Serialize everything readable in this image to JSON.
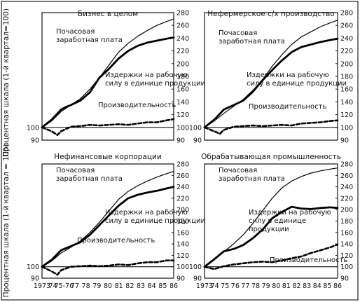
{
  "figure": {
    "ylabel_top": "Процентная шкала (1-й квартал=100)",
    "ylabel_bottom": "Процентная шкала (1-й квартал = 100)",
    "yticks": [
      "90",
      "100",
      "120",
      "140",
      "160",
      "180",
      "200",
      "220",
      "240",
      "260",
      "280"
    ],
    "xticks_left": [
      "1973",
      "74",
      "75-76",
      "77",
      "78",
      "79",
      "80",
      "81",
      "82",
      "83",
      "84",
      "85",
      "86"
    ],
    "xticks_right": [
      "1973",
      "74",
      "75",
      "76",
      "77",
      "78",
      "79",
      "80",
      "81",
      "82",
      "83",
      "84",
      "85",
      "86"
    ]
  },
  "chart_data": [
    {
      "type": "line",
      "title": "Бизнес в целом",
      "ylim": [
        90,
        280
      ],
      "xlim": [
        1973,
        1986.75
      ],
      "annotations": [
        "Почасовая заработная плата",
        "Издержки на рабочую силу в единице продукции",
        "Производительность"
      ],
      "series": [
        {
          "name": "Почасовая заработная плата",
          "style": "thin",
          "x": [
            1973,
            1974,
            1975,
            1976,
            1977,
            1978,
            1979,
            1980,
            1981,
            1982,
            1983,
            1984,
            1985,
            1986,
            1986.75
          ],
          "y": [
            100,
            110,
            125,
            135,
            145,
            160,
            178,
            198,
            218,
            232,
            243,
            252,
            260,
            266,
            270
          ]
        },
        {
          "name": "Издержки на рабочую силу в единице продукции",
          "style": "thick",
          "x": [
            1973,
            1974,
            1975,
            1975.5,
            1976,
            1977,
            1978,
            1979,
            1980,
            1981,
            1982,
            1983,
            1984,
            1985,
            1986,
            1986.75
          ],
          "y": [
            100,
            112,
            128,
            132,
            135,
            142,
            155,
            178,
            192,
            208,
            220,
            228,
            233,
            236,
            239,
            241
          ]
        },
        {
          "name": "Производительность",
          "style": "dashed",
          "x": [
            1973,
            1974,
            1974.6,
            1975,
            1976,
            1977,
            1978,
            1979,
            1980,
            1981,
            1982,
            1983,
            1984,
            1985,
            1986,
            1986.75
          ],
          "y": [
            100,
            97,
            94,
            97,
            101,
            102,
            104,
            103,
            104,
            105,
            104,
            106,
            108,
            108,
            111,
            113
          ]
        }
      ]
    },
    {
      "type": "line",
      "title": "Нефермерское с/х производство",
      "ylim": [
        90,
        280
      ],
      "xlim": [
        1973,
        1986.75
      ],
      "annotations": [
        "Почасовая заработная плата",
        "Издержки на рабочую силу в единице продукции",
        "Производительность"
      ],
      "series": [
        {
          "name": "Почасовая заработная плата",
          "style": "thin",
          "x": [
            1973,
            1974,
            1975,
            1976,
            1977,
            1978,
            1979,
            1980,
            1981,
            1982,
            1983,
            1984,
            1985,
            1986,
            1986.75
          ],
          "y": [
            100,
            110,
            122,
            133,
            144,
            158,
            175,
            196,
            214,
            230,
            242,
            250,
            258,
            264,
            268
          ]
        },
        {
          "name": "Издержки на рабочую силу в единице продукции",
          "style": "thick",
          "x": [
            1973,
            1974,
            1975,
            1976,
            1977,
            1978,
            1979,
            1980,
            1981,
            1982,
            1983,
            1984,
            1985,
            1986,
            1986.75
          ],
          "y": [
            100,
            112,
            128,
            135,
            142,
            156,
            174,
            190,
            205,
            218,
            226,
            230,
            234,
            237,
            239
          ]
        },
        {
          "name": "Производительность",
          "style": "dashed",
          "x": [
            1973,
            1974,
            1974.6,
            1975,
            1976,
            1977,
            1978,
            1979,
            1980,
            1981,
            1982,
            1983,
            1984,
            1985,
            1986,
            1986.75
          ],
          "y": [
            100,
            97,
            95,
            98,
            101,
            102,
            103,
            102,
            103,
            104,
            103,
            106,
            107,
            108,
            110,
            111
          ]
        }
      ]
    },
    {
      "type": "line",
      "title": "Нефинансовые корпорации",
      "ylim": [
        90,
        280
      ],
      "xlim": [
        1973,
        1986.75
      ],
      "annotations": [
        "Почасовая заработная плата",
        "Издержки на рабочую силу в единице продукции",
        "Производительность"
      ],
      "series": [
        {
          "name": "Почасовая заработная плата",
          "style": "thin",
          "x": [
            1973,
            1974,
            1975,
            1976,
            1977,
            1978,
            1979,
            1980,
            1981,
            1982,
            1983,
            1984,
            1985,
            1986,
            1986.75
          ],
          "y": [
            100,
            110,
            124,
            134,
            145,
            160,
            178,
            198,
            218,
            232,
            242,
            250,
            257,
            263,
            267
          ]
        },
        {
          "name": "Издержки на рабочую силу в единице продукции",
          "style": "thick",
          "x": [
            1973,
            1974,
            1975,
            1976,
            1977,
            1978,
            1979,
            1980,
            1981,
            1982,
            1983,
            1984,
            1985,
            1986,
            1986.75
          ],
          "y": [
            100,
            112,
            129,
            136,
            143,
            156,
            173,
            190,
            207,
            220,
            226,
            230,
            233,
            237,
            240
          ]
        },
        {
          "name": "Производительность",
          "style": "dashed",
          "x": [
            1973,
            1974,
            1974.6,
            1975,
            1976,
            1977,
            1978,
            1979,
            1980,
            1981,
            1982,
            1983,
            1984,
            1985,
            1986,
            1986.75
          ],
          "y": [
            100,
            96,
            93,
            97,
            100,
            101,
            102,
            101,
            102,
            104,
            103,
            106,
            108,
            108,
            111,
            111
          ]
        }
      ]
    },
    {
      "type": "line",
      "title": "Обрабатывающая промышленность",
      "ylim": [
        90,
        280
      ],
      "xlim": [
        1973,
        1986.75
      ],
      "annotations": [
        "Почасовая заработная плата",
        "Издержки на рабочую силу в единице продукции",
        "Производительность"
      ],
      "series": [
        {
          "name": "Почасовая заработная плата",
          "style": "thin",
          "x": [
            1973,
            1974,
            1975,
            1976,
            1977,
            1978,
            1979,
            1980,
            1981,
            1982,
            1983,
            1984,
            1985,
            1986,
            1986.75
          ],
          "y": [
            100,
            112,
            126,
            140,
            156,
            176,
            198,
            220,
            238,
            250,
            258,
            264,
            268,
            271,
            273
          ]
        },
        {
          "name": "Издержки на рабочую силу в единице продукции",
          "style": "thick",
          "x": [
            1973,
            1974,
            1975,
            1976,
            1977,
            1978,
            1979,
            1980,
            1981,
            1982,
            1983,
            1984,
            1985,
            1986,
            1986.75
          ],
          "y": [
            100,
            113,
            127,
            131,
            138,
            150,
            165,
            185,
            196,
            205,
            202,
            201,
            203,
            204,
            203
          ]
        },
        {
          "name": "Производительность",
          "style": "dashed",
          "x": [
            1973,
            1974,
            1975,
            1976,
            1977,
            1978,
            1979,
            1980,
            1981,
            1982,
            1983,
            1984,
            1985,
            1986,
            1986.75
          ],
          "y": [
            100,
            98,
            101,
            104,
            106,
            108,
            109,
            108,
            111,
            115,
            118,
            124,
            129,
            134,
            139
          ]
        }
      ]
    }
  ]
}
